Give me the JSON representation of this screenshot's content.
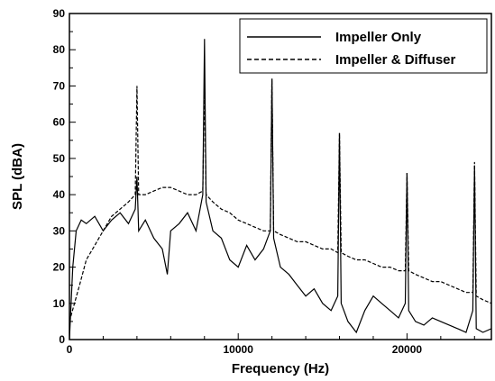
{
  "chart_data": {
    "type": "line",
    "title": "",
    "xlabel": "Frequency (Hz)",
    "ylabel": "SPL (dBA)",
    "xlim": [
      0,
      25000
    ],
    "ylim": [
      0,
      90
    ],
    "x_ticks": [
      0,
      10000,
      20000
    ],
    "x_tick_labels": [
      "0",
      "10000",
      "20000"
    ],
    "y_ticks": [
      0,
      10,
      20,
      30,
      40,
      50,
      60,
      70,
      80,
      90
    ],
    "y_tick_labels": [
      "0",
      "10",
      "20",
      "30",
      "40",
      "50",
      "60",
      "70",
      "80",
      "90"
    ],
    "grid": false,
    "legend": "top-right",
    "series": [
      {
        "name": "Impeller Only",
        "line_style": "solid",
        "color": "#000000",
        "x": [
          0,
          200,
          400,
          700,
          1000,
          1500,
          2000,
          2500,
          3000,
          3500,
          3900,
          4000,
          4100,
          4500,
          5000,
          5500,
          5800,
          6000,
          6500,
          7000,
          7500,
          7900,
          8000,
          8100,
          8500,
          9000,
          9500,
          10000,
          10500,
          11000,
          11500,
          11900,
          12000,
          12100,
          12500,
          13000,
          13500,
          14000,
          14500,
          15000,
          15500,
          15900,
          16000,
          16100,
          16500,
          17000,
          17500,
          18000,
          18500,
          19000,
          19500,
          19900,
          20000,
          20100,
          20500,
          21000,
          21500,
          22000,
          22500,
          23000,
          23500,
          23900,
          24000,
          24100,
          24500,
          25000
        ],
        "y": [
          0,
          20,
          30,
          33,
          32,
          34,
          30,
          33,
          35,
          32,
          36,
          45,
          30,
          33,
          28,
          25,
          18,
          30,
          32,
          35,
          30,
          40,
          83,
          38,
          30,
          28,
          22,
          20,
          26,
          22,
          25,
          30,
          72,
          28,
          20,
          18,
          15,
          12,
          14,
          10,
          8,
          12,
          57,
          10,
          5,
          2,
          8,
          12,
          10,
          8,
          6,
          10,
          46,
          8,
          5,
          4,
          6,
          5,
          4,
          3,
          2,
          8,
          48,
          3,
          2,
          3
        ]
      },
      {
        "name": "Impeller & Diffuser",
        "line_style": "dashed",
        "color": "#000000",
        "x": [
          0,
          300,
          600,
          1000,
          1500,
          2000,
          2500,
          3000,
          3500,
          3900,
          4000,
          4100,
          4500,
          5000,
          5500,
          6000,
          6500,
          7000,
          7500,
          7900,
          8000,
          8100,
          8500,
          9000,
          9500,
          10000,
          10500,
          11000,
          11500,
          11900,
          12000,
          12100,
          12500,
          13000,
          13500,
          14000,
          14500,
          15000,
          15500,
          15900,
          16000,
          16100,
          16500,
          17000,
          17500,
          18000,
          18500,
          19000,
          19500,
          19900,
          20000,
          20100,
          20500,
          21000,
          21500,
          22000,
          22500,
          23000,
          23500,
          23900,
          24000,
          24100,
          24500,
          25000
        ],
        "y": [
          5,
          10,
          15,
          22,
          26,
          30,
          34,
          36,
          38,
          40,
          70,
          40,
          40,
          41,
          42,
          42,
          41,
          40,
          40,
          41,
          70,
          40,
          38,
          36,
          35,
          33,
          32,
          31,
          30,
          30,
          72,
          30,
          29,
          28,
          27,
          27,
          26,
          25,
          25,
          24,
          57,
          24,
          23,
          22,
          22,
          21,
          20,
          20,
          19,
          19,
          46,
          19,
          18,
          17,
          16,
          16,
          15,
          14,
          13,
          13,
          49,
          12,
          11,
          10
        ]
      }
    ]
  }
}
